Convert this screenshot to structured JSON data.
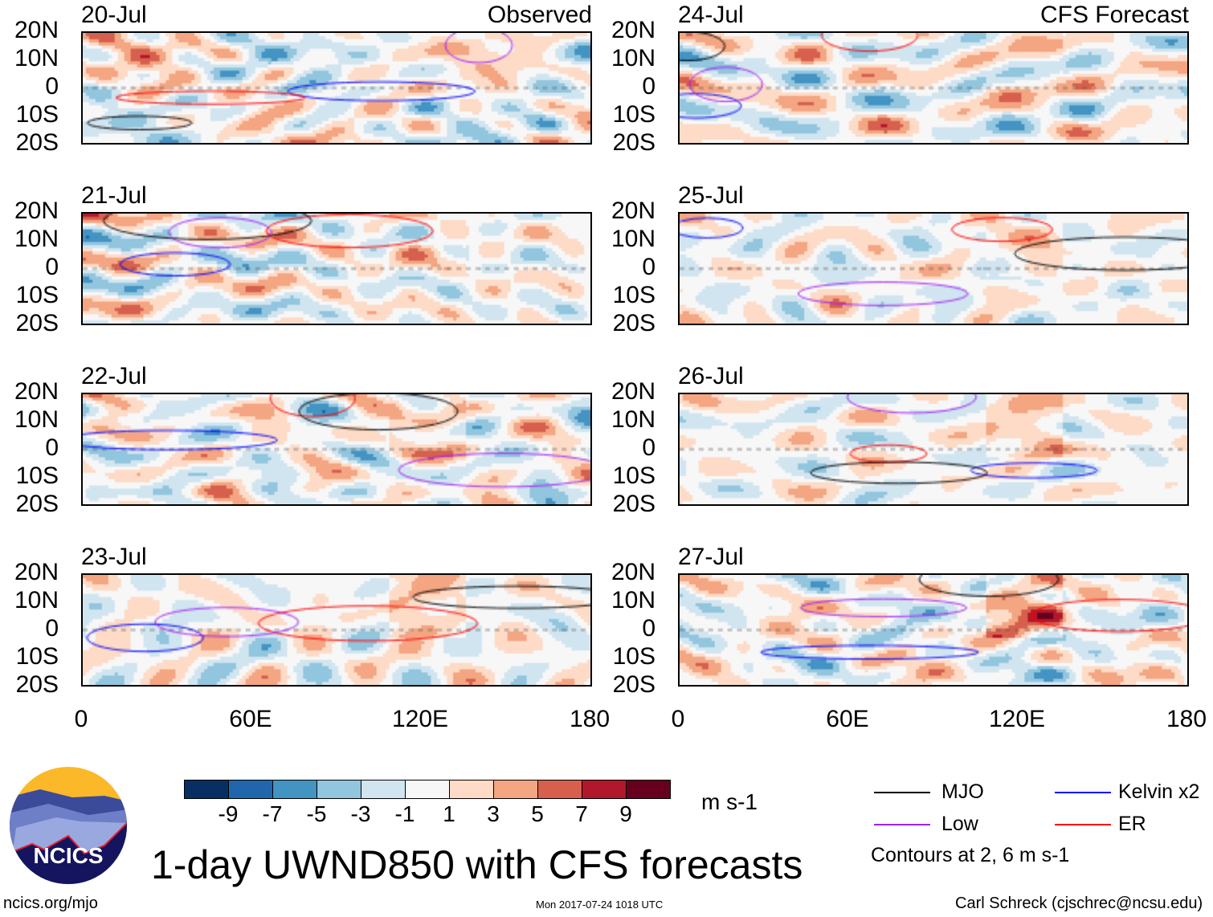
{
  "title": "1-day UWND850 with CFS forecasts",
  "left_column_label": "Observed",
  "right_column_label": "CFS Forecast",
  "panels_left": [
    "20-Jul",
    "21-Jul",
    "22-Jul",
    "23-Jul"
  ],
  "panels_right": [
    "24-Jul",
    "25-Jul",
    "26-Jul",
    "27-Jul"
  ],
  "lat_labels": [
    "20N",
    "10N",
    "0",
    "10S",
    "20S"
  ],
  "lon_labels": [
    "0",
    "60E",
    "120E",
    "180"
  ],
  "colorbar": {
    "colors": [
      "#053061",
      "#2166ac",
      "#4393c3",
      "#92c5de",
      "#d1e5f0",
      "#f7f7f7",
      "#fddbc7",
      "#f4a582",
      "#d6604d",
      "#b2182b",
      "#67001f"
    ],
    "labels": [
      "-9",
      "-7",
      "-5",
      "-3",
      "-1",
      "1",
      "3",
      "5",
      "7",
      "9"
    ],
    "units": "m s-1"
  },
  "legend": {
    "items": [
      {
        "label": "MJO",
        "color": "#000000"
      },
      {
        "label": "Kelvin x2",
        "color": "#0000ff"
      },
      {
        "label": "Low",
        "color": "#a020f0"
      },
      {
        "label": "ER",
        "color": "#ff0000"
      }
    ],
    "note": "Contours at 2, 6 m s-1"
  },
  "logo_text": "NCICS",
  "footer": {
    "url": "ncics.org/mjo",
    "timestamp": "Mon 2017-07-24 1018 UTC",
    "author": "Carl Schreck (cjschrec@ncsu.edu)"
  }
}
